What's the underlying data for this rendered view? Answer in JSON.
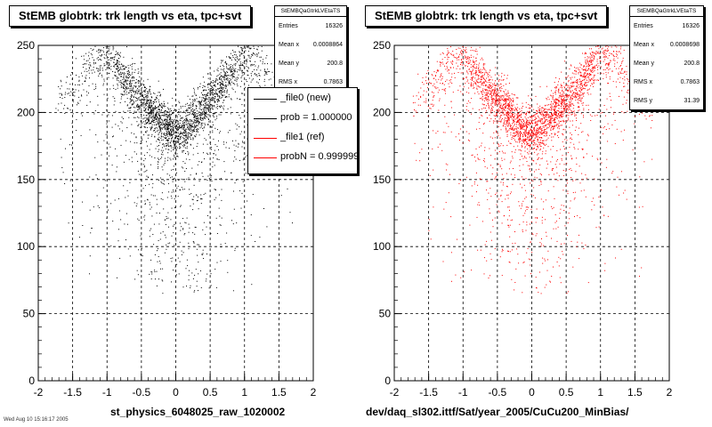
{
  "left": {
    "title": "StEMB globtrk: trk length vs eta, tpc+svt",
    "stats": {
      "name": "StEMBQaGtrkLVEtaTS",
      "rows": [
        {
          "label": "Entries",
          "value": "16326"
        },
        {
          "label": "Mean x",
          "value": "0.0008864"
        },
        {
          "label": "Mean y",
          "value": "200.8"
        },
        {
          "label": "RMS x",
          "value": "0.7863"
        }
      ]
    },
    "legend": [
      {
        "label": "_file0 (new)",
        "color": "#000000"
      },
      {
        "label": "prob = 1.000000",
        "color": "#000000"
      },
      {
        "label": "_file1 (ref)",
        "color": "#ff0000"
      },
      {
        "label": "probN = 0.999999",
        "color": "#ff0000"
      }
    ],
    "xtitle": "st_physics_6048025_raw_1020002",
    "datestamp": "Wed Aug 10 15:16:17 2005"
  },
  "right": {
    "title": "StEMB globtrk: trk length vs eta, tpc+svt",
    "stats": {
      "name": "StEMBQaGtrkLVEtaTS",
      "rows": [
        {
          "label": "Entries",
          "value": "16326"
        },
        {
          "label": "Mean x",
          "value": "0.0008698"
        },
        {
          "label": "Mean y",
          "value": "200.8"
        },
        {
          "label": "RMS x",
          "value": "0.7863"
        },
        {
          "label": "RMS y",
          "value": "31.39"
        }
      ]
    },
    "xtitle": "dev/daq_sl302.ittf/Sat/year_2005/CuCu200_MinBias/"
  },
  "chart_data": [
    {
      "type": "scatter",
      "title": "StEMB globtrk: trk length vs eta, tpc+svt",
      "xlabel": "st_physics_6048025_raw_1020002",
      "ylabel": "",
      "xlim": [
        -2,
        2
      ],
      "ylim": [
        0,
        250
      ],
      "xticks": [
        -2,
        -1.5,
        -1,
        -0.5,
        0,
        0.5,
        1,
        1.5,
        2
      ],
      "yticks": [
        0,
        50,
        100,
        150,
        200,
        250
      ],
      "grid": true,
      "color": "#000000",
      "series": [
        {
          "name": "_file0 (new)",
          "entries": 16326,
          "mean_x": 0.0008864,
          "mean_y": 200.8,
          "rms_x": 0.7863
        }
      ],
      "density_profile": {
        "x": [
          -1.6,
          -1.4,
          -1.2,
          -1.0,
          -0.8,
          -0.6,
          -0.4,
          -0.2,
          0,
          0.2,
          0.4,
          0.6,
          0.8,
          1.0,
          1.2,
          1.4,
          1.6
        ],
        "y_band": [
          210,
          225,
          240,
          245,
          230,
          215,
          205,
          192,
          185,
          192,
          205,
          215,
          230,
          245,
          240,
          225,
          210
        ]
      }
    },
    {
      "type": "scatter",
      "title": "StEMB globtrk: trk length vs eta, tpc+svt",
      "xlabel": "dev/daq_sl302.ittf/Sat/year_2005/CuCu200_MinBias/",
      "ylabel": "",
      "xlim": [
        -2,
        2
      ],
      "ylim": [
        0,
        250
      ],
      "xticks": [
        -2,
        -1.5,
        -1,
        -0.5,
        0,
        0.5,
        1,
        1.5,
        2
      ],
      "yticks": [
        0,
        50,
        100,
        150,
        200,
        250
      ],
      "grid": true,
      "color": "#ff0000",
      "series": [
        {
          "name": "_file1 (ref)",
          "entries": 16326,
          "mean_x": 0.0008698,
          "mean_y": 200.8,
          "rms_x": 0.7863,
          "rms_y": 31.39
        }
      ],
      "density_profile": {
        "x": [
          -1.6,
          -1.4,
          -1.2,
          -1.0,
          -0.8,
          -0.6,
          -0.4,
          -0.2,
          0,
          0.2,
          0.4,
          0.6,
          0.8,
          1.0,
          1.2,
          1.4,
          1.6
        ],
        "y_band": [
          210,
          225,
          240,
          245,
          230,
          215,
          205,
          192,
          185,
          192,
          205,
          215,
          230,
          245,
          240,
          225,
          210
        ]
      }
    }
  ]
}
